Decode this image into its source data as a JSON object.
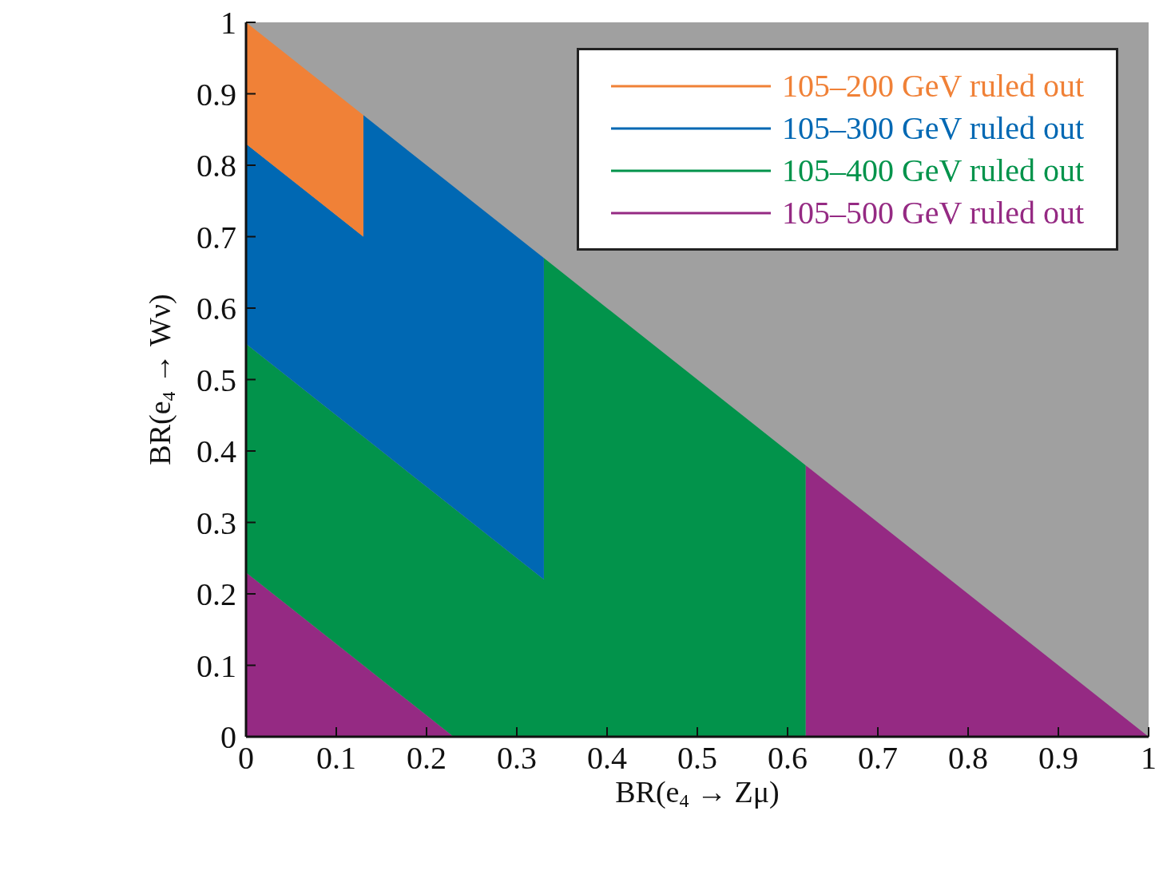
{
  "chart_data": {
    "type": "area",
    "stacked": true,
    "xlabel": "BR(e$_{4}$ → Zμ)",
    "ylabel": "BR(e$_{4}$ → Wν)",
    "xlim": [
      0,
      1
    ],
    "ylim": [
      0,
      1
    ],
    "xticks": [
      0,
      0.1,
      0.2,
      0.3,
      0.4,
      0.5,
      0.6,
      0.7,
      0.8,
      0.9,
      1
    ],
    "yticks": [
      0,
      0.1,
      0.2,
      0.3,
      0.4,
      0.5,
      0.6,
      0.7,
      0.8,
      0.9,
      1
    ],
    "legend": "top right",
    "grid": false,
    "x": [
      0,
      0.13,
      0.13,
      0.23,
      0.33,
      0.33,
      0.62,
      0.62,
      1
    ],
    "series": [
      {
        "name": "105–500 GeV ruled out",
        "color": "#952a83",
        "values": [
          0.23,
          0.1,
          0.1,
          0,
          0,
          0,
          0,
          0.38,
          0
        ]
      },
      {
        "name": "105–400 GeV ruled out",
        "color": "#02934b",
        "values": [
          0.32,
          0.32,
          0.32,
          0.32,
          0.22,
          0.67,
          0.38,
          0,
          0
        ]
      },
      {
        "name": "105–300 GeV ruled out",
        "color": "#0068b3",
        "values": [
          0.28,
          0.28,
          0.45,
          0.45,
          0.45,
          0,
          0,
          0,
          0
        ]
      },
      {
        "name": "105–200 GeV ruled out",
        "color": "#f08137",
        "values": [
          0.17,
          0.17,
          0,
          0,
          0,
          0,
          0,
          0,
          0
        ]
      }
    ]
  }
}
